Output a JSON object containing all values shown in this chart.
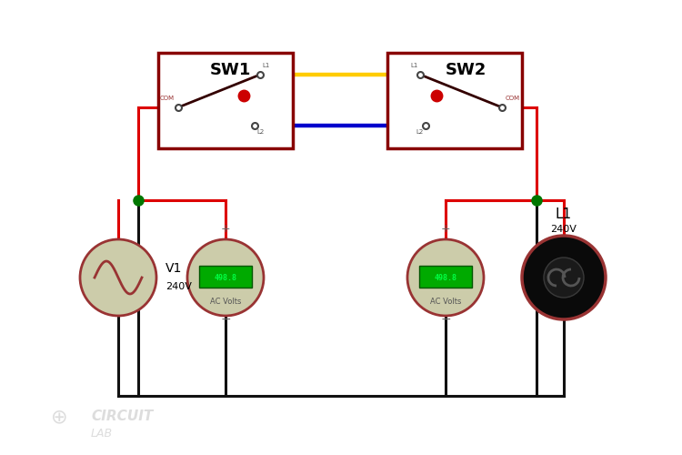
{
  "wire_red": "#dd0000",
  "wire_yellow": "#ffcc00",
  "wire_blue": "#0000cc",
  "wire_black": "#111111",
  "node_green": "#007700",
  "box_border": "#880000",
  "switch_color": "#330000",
  "source_bg": "#ccccaa",
  "meter_green": "#00aa00",
  "meter_text_color": "#00ff44",
  "meter_label": "AC Volts",
  "meter_value": "498.8",
  "lamp_bg": "#111111",
  "sw1_label": "SW1",
  "sw2_label": "SW2",
  "v1_label": "V1",
  "v1_volt": "240V",
  "l1_label": "L1",
  "l1_volt": "240V",
  "watermark": "CIRCUIT",
  "watermark2": "LAB",
  "lw": 2.2,
  "fig_w": 7.5,
  "fig_h": 5.0,
  "dpi": 100
}
